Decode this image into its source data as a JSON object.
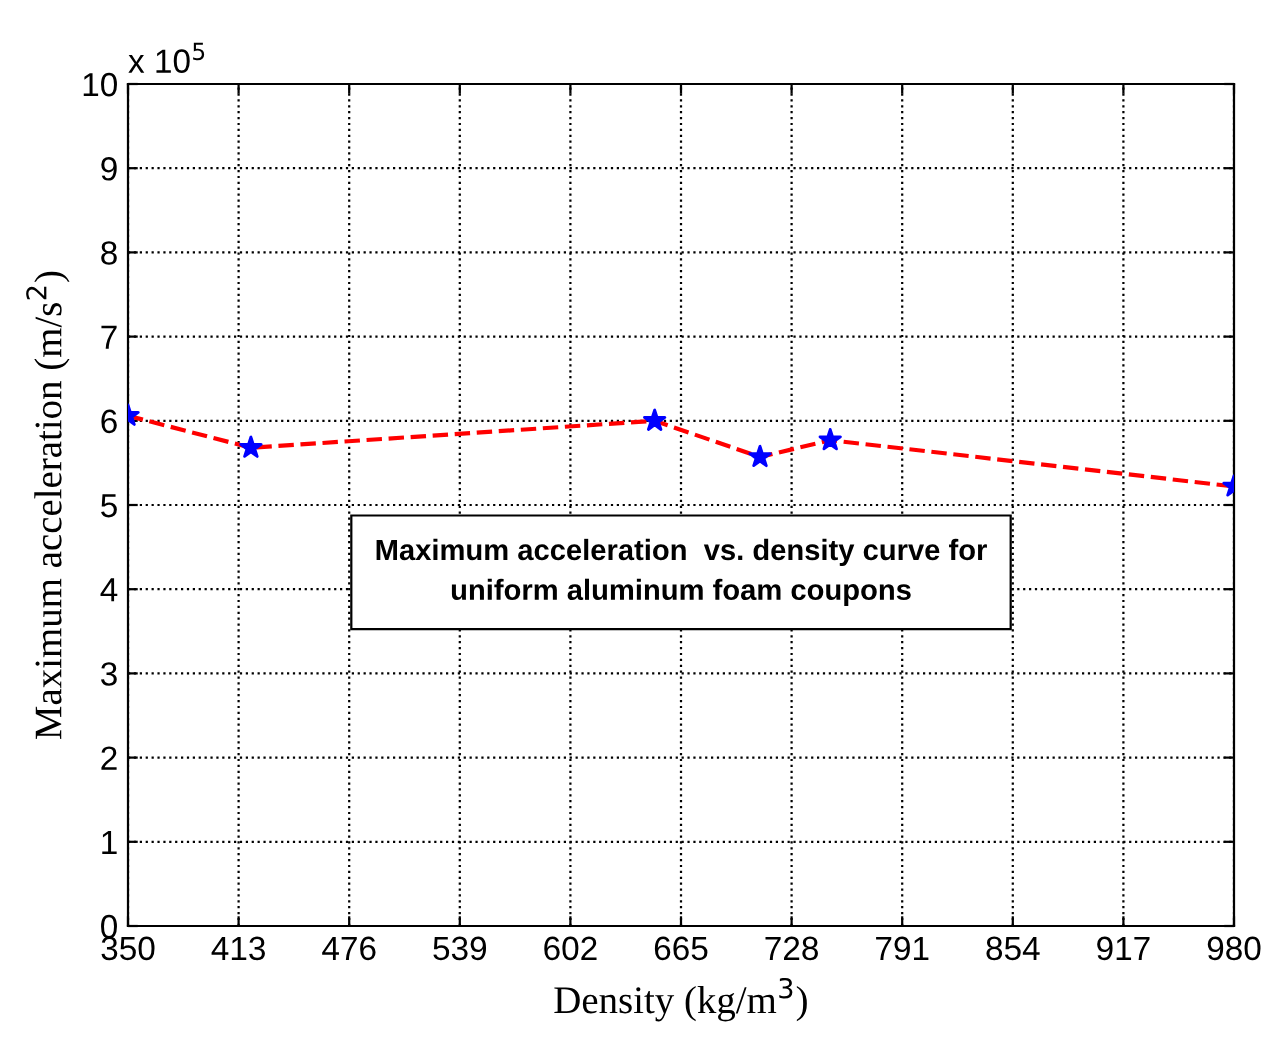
{
  "chart_data": {
    "type": "line",
    "xlabel": "Density (kg/m$^{3}$)",
    "ylabel": "Maximum acceleration (m/s$^{2}$)",
    "x": [
      350,
      420,
      650,
      710,
      750,
      980
    ],
    "series": [
      {
        "color": "#ff0000",
        "colors": [
          "#0000ff",
          "#0000ff",
          "#0000ff",
          "#0000ff",
          "#0000ff",
          "#0000ff"
        ],
        "values": [
          6.06,
          5.68,
          6.0,
          5.57,
          5.77,
          5.22
        ]
      }
    ],
    "xlim": [
      350,
      980
    ],
    "xticks": [
      350,
      413,
      476,
      539,
      602,
      665,
      728,
      791,
      854,
      917,
      980
    ],
    "ylim": [
      0,
      10
    ],
    "yticks": [
      0,
      1,
      2,
      3,
      4,
      5,
      6,
      7,
      8,
      9,
      10
    ],
    "annotations": [
      "x 10$^{5}$",
      "Maximum acceleration  vs. density curve for\nuniform aluminum foam coupons"
    ],
    "grid": true,
    "marker": "star",
    "line_style": "dashed"
  }
}
